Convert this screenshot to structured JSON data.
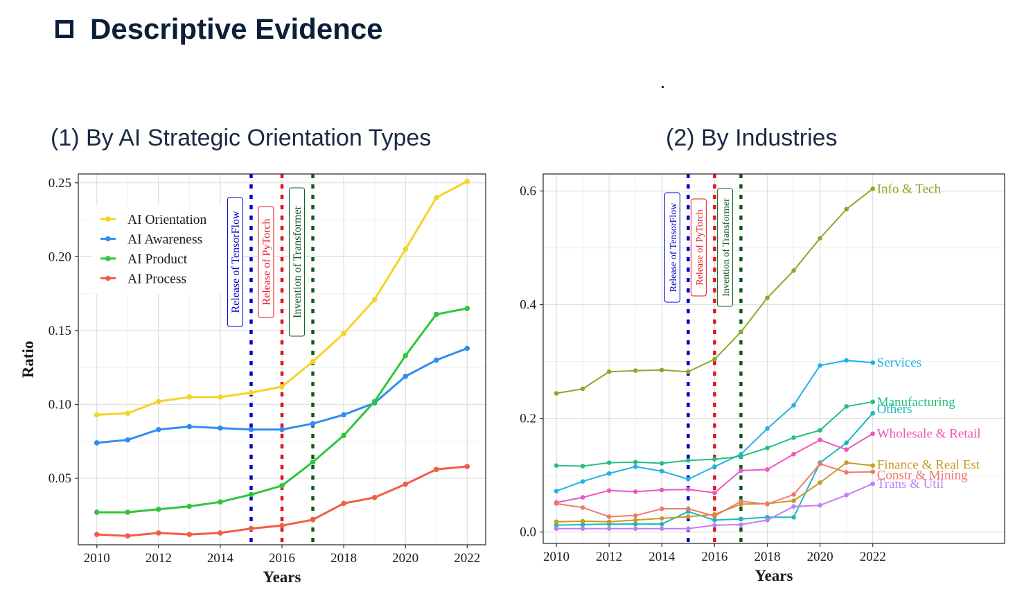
{
  "slide": {
    "title": "Descriptive Evidence",
    "icon": "checkbox-icon"
  },
  "colors": {
    "title": "#0b1f3a",
    "tensorflow": "#0000cc",
    "pytorch": "#e8101a",
    "transformer": "#0d5c1a"
  },
  "chart_data": [
    {
      "panel_title": "(1) By AI Strategic Orientation Types",
      "type": "line",
      "xlabel": "Years",
      "ylabel": "Ratio",
      "xlim": [
        2009.4,
        2022.6
      ],
      "ylim": [
        0.005,
        0.256
      ],
      "xticks": [
        2010,
        2012,
        2014,
        2016,
        2018,
        2020,
        2022
      ],
      "yticks": [
        0.05,
        0.1,
        0.15,
        0.2,
        0.25
      ],
      "ytick_labels": [
        "0.05",
        "0.10",
        "0.15",
        "0.20",
        "0.25"
      ],
      "grid": true,
      "legend": "top-left",
      "x": [
        2010,
        2011,
        2012,
        2013,
        2014,
        2015,
        2016,
        2017,
        2018,
        2019,
        2020,
        2021,
        2022
      ],
      "series": [
        {
          "name": "AI Orientation",
          "color": "#f5d327",
          "values": [
            0.093,
            0.094,
            0.102,
            0.105,
            0.105,
            0.108,
            0.112,
            0.129,
            0.148,
            0.171,
            0.205,
            0.24,
            0.251
          ]
        },
        {
          "name": "AI Awareness",
          "color": "#2e8ef0",
          "values": [
            0.074,
            0.076,
            0.083,
            0.085,
            0.084,
            0.083,
            0.083,
            0.087,
            0.093,
            0.101,
            0.119,
            0.13,
            0.138
          ]
        },
        {
          "name": "AI Product",
          "color": "#2fc63c",
          "values": [
            0.027,
            0.027,
            0.029,
            0.031,
            0.034,
            0.039,
            0.045,
            0.061,
            0.079,
            0.102,
            0.133,
            0.161,
            0.165
          ]
        },
        {
          "name": "AI Process",
          "color": "#f45c45",
          "values": [
            0.012,
            0.011,
            0.013,
            0.012,
            0.013,
            0.016,
            0.018,
            0.022,
            0.033,
            0.037,
            0.046,
            0.056,
            0.058
          ]
        }
      ],
      "events": [
        {
          "x": 2015,
          "label": "Release of TensorFlow",
          "color": "#0000cc"
        },
        {
          "x": 2016,
          "label": "Release of PyTorch",
          "color": "#e8101a"
        },
        {
          "x": 2017,
          "label": "Invention of Transformer",
          "color": "#0d5c1a"
        }
      ]
    },
    {
      "panel_title": "(2) By Industries",
      "type": "line",
      "xlabel": "Years",
      "ylabel": "",
      "xlim": [
        2009.5,
        2027.0
      ],
      "ylim": [
        -0.02,
        0.63
      ],
      "xticks": [
        2010,
        2012,
        2014,
        2016,
        2018,
        2020,
        2022
      ],
      "yticks": [
        0.0,
        0.2,
        0.4,
        0.6
      ],
      "ytick_labels": [
        "0.0",
        "0.2",
        "0.4",
        "0.6"
      ],
      "grid": true,
      "legend": "direct-labels-right",
      "x": [
        2010,
        2011,
        2012,
        2013,
        2014,
        2015,
        2016,
        2017,
        2018,
        2019,
        2020,
        2021,
        2022
      ],
      "series": [
        {
          "name": "Info & Tech",
          "color": "#8aa82a",
          "values": [
            0.244,
            0.252,
            0.282,
            0.284,
            0.285,
            0.282,
            0.304,
            0.352,
            0.412,
            0.46,
            0.517,
            0.568,
            0.604
          ]
        },
        {
          "name": "Services",
          "color": "#1fb2e8",
          "values": [
            0.072,
            0.089,
            0.103,
            0.115,
            0.107,
            0.093,
            0.115,
            0.137,
            0.182,
            0.223,
            0.293,
            0.302,
            0.298
          ]
        },
        {
          "name": "Manufacturing",
          "color": "#25c07a",
          "values": [
            0.117,
            0.116,
            0.122,
            0.123,
            0.121,
            0.126,
            0.128,
            0.133,
            0.148,
            0.166,
            0.179,
            0.221,
            0.229
          ]
        },
        {
          "name": "Others",
          "color": "#19b8c0",
          "values": [
            0.012,
            0.013,
            0.014,
            0.014,
            0.014,
            0.036,
            0.021,
            0.023,
            0.026,
            0.026,
            0.122,
            0.157,
            0.209
          ]
        },
        {
          "name": "Wholesale & Retail",
          "color": "#ef55c0",
          "values": [
            0.052,
            0.061,
            0.073,
            0.071,
            0.074,
            0.075,
            0.069,
            0.108,
            0.11,
            0.137,
            0.162,
            0.145,
            0.173
          ]
        },
        {
          "name": "Finance & Real Est",
          "color": "#c89a22",
          "values": [
            0.018,
            0.019,
            0.018,
            0.021,
            0.024,
            0.027,
            0.031,
            0.049,
            0.05,
            0.055,
            0.087,
            0.122,
            0.117
          ]
        },
        {
          "name": "Constr & Mining",
          "color": "#f07a6a",
          "values": [
            0.05,
            0.043,
            0.027,
            0.029,
            0.041,
            0.041,
            0.028,
            0.054,
            0.049,
            0.066,
            0.12,
            0.105,
            0.106
          ]
        },
        {
          "name": "Trans & Util",
          "color": "#c47ef0",
          "values": [
            0.006,
            0.006,
            0.006,
            0.006,
            0.006,
            0.006,
            0.012,
            0.013,
            0.021,
            0.045,
            0.047,
            0.065,
            0.085
          ]
        }
      ],
      "events": [
        {
          "x": 2015,
          "label": "Release of TensorFlow",
          "color": "#0000cc"
        },
        {
          "x": 2016,
          "label": "Release of PyTorch",
          "color": "#e8101a"
        },
        {
          "x": 2017,
          "label": "Invention of Transformer",
          "color": "#0d5c1a"
        }
      ]
    }
  ]
}
